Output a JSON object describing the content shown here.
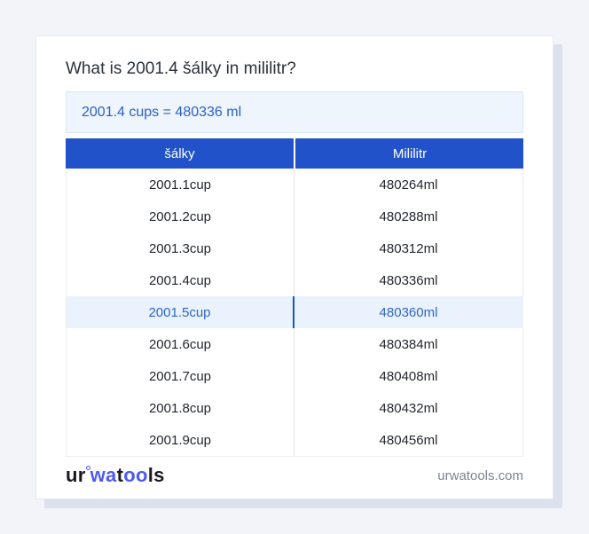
{
  "card": {
    "title": "What is 2001.4 šálky in mililitr?",
    "answer": "2001.4 cups = 480336 ml"
  },
  "table": {
    "headers": [
      "šálky",
      "Mililitr"
    ],
    "rows": [
      {
        "cup": "2001.1cup",
        "ml": "480264ml",
        "highlight": false
      },
      {
        "cup": "2001.2cup",
        "ml": "480288ml",
        "highlight": false
      },
      {
        "cup": "2001.3cup",
        "ml": "480312ml",
        "highlight": false
      },
      {
        "cup": "2001.4cup",
        "ml": "480336ml",
        "highlight": false
      },
      {
        "cup": "2001.5cup",
        "ml": "480360ml",
        "highlight": true
      },
      {
        "cup": "2001.6cup",
        "ml": "480384ml",
        "highlight": false
      },
      {
        "cup": "2001.7cup",
        "ml": "480408ml",
        "highlight": false
      },
      {
        "cup": "2001.8cup",
        "ml": "480432ml",
        "highlight": false
      },
      {
        "cup": "2001.9cup",
        "ml": "480456ml",
        "highlight": false
      }
    ]
  },
  "footer": {
    "logo": {
      "seg1": "ur",
      "seg2": "wa",
      "seg3": "t",
      "seg4": "oo",
      "seg5": "ls"
    },
    "domain": "urwatools.com"
  },
  "colors": {
    "page_background": "#f2f4f9",
    "header_blue": "#2152c9",
    "answer_background": "#eef5fd",
    "answer_text": "#2a60c3",
    "highlight_background": "#e9f2fd",
    "highlight_text": "#2f66c6",
    "highlight_divider": "#1d55b2",
    "logo_blue": "#4d5af0",
    "card_shadow": "#dce1ed"
  }
}
